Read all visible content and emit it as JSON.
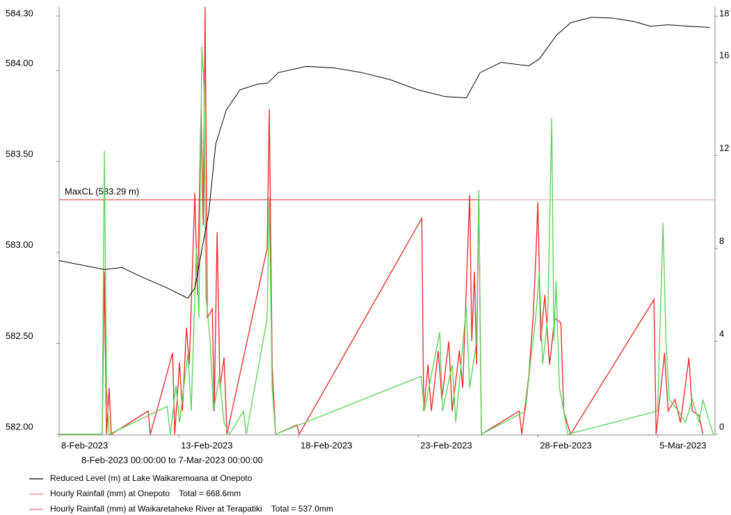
{
  "chart_data": {
    "type": "line",
    "subtitle": "8-Feb-2023 00:00:00 to  7-Mar-2023 00:00:00",
    "xlim": [
      0,
      27.4
    ],
    "xticks": [
      {
        "value": 0,
        "label": "8-Feb-2023"
      },
      {
        "value": 5,
        "label": "13-Feb-2023"
      },
      {
        "value": 10,
        "label": "18-Feb-2023"
      },
      {
        "value": 15,
        "label": "23-Feb-2023"
      },
      {
        "value": 20,
        "label": "28-Feb-2023"
      },
      {
        "value": 25,
        "label": "5-Mar-2023"
      }
    ],
    "ylim": [
      582,
      584.35
    ],
    "yticks": [
      {
        "value": 582,
        "label": "582.00"
      },
      {
        "value": 582.5,
        "label": "582.50"
      },
      {
        "value": 583,
        "label": "583.00"
      },
      {
        "value": 583.5,
        "label": "583.50"
      },
      {
        "value": 584,
        "label": "584.00"
      },
      {
        "value": 584.3,
        "label": "584.30"
      }
    ],
    "y2lim": [
      0,
      18.4
    ],
    "y2ticks": [
      0,
      4,
      8,
      12,
      16,
      18
    ],
    "grid": false,
    "reference_line": {
      "label": "MaxCL (583.29 m)",
      "value": 583.29,
      "color": "#e02020"
    },
    "series": [
      {
        "name": "Reduced Level (m) at Lake Waikaremoana at Onepoto",
        "color": "#000000",
        "legend_color": "#000000",
        "x": [
          0,
          1.89,
          2.62,
          3.34,
          4.51,
          5.38,
          5.67,
          6.25,
          6.54,
          6.98,
          7.56,
          8.29,
          8.72,
          9.16,
          10.32,
          11.48,
          12.65,
          13.81,
          14.97,
          16.13,
          17.01,
          17.59,
          18.46,
          19.62,
          20.06,
          20.78,
          21.37,
          22.24,
          23.11,
          23.98,
          24.71,
          25.44,
          26.31,
          27.18
        ],
        "values": [
          582.955,
          582.906,
          582.917,
          582.872,
          582.805,
          582.748,
          582.805,
          583.218,
          583.594,
          583.782,
          583.895,
          583.925,
          583.932,
          583.989,
          584.023,
          584.015,
          583.989,
          583.951,
          583.895,
          583.857,
          583.85,
          583.989,
          584.045,
          584.026,
          584.064,
          584.195,
          584.263,
          584.293,
          584.289,
          584.271,
          584.244,
          584.252,
          584.244,
          584.237
        ]
      },
      {
        "name": "Hourly Rainfall (mm) at Onepoto    Total = 668.6mm",
        "color": "#e83030",
        "legend_color": "#f08080",
        "axis": "y2",
        "x": [
          0,
          1.8,
          1.89,
          1.98,
          2.09,
          2.18,
          3.72,
          3.81,
          4.74,
          4.83,
          5.03,
          5.15,
          5.32,
          5.44,
          5.67,
          5.78,
          5.93,
          6.02,
          6.1,
          6.19,
          6.4,
          6.48,
          6.6,
          6.72,
          6.89,
          7.01,
          8.69,
          8.78,
          8.9,
          9.04,
          9.94,
          10.03,
          15.15,
          15.23,
          15.41,
          15.55,
          15.84,
          15.99,
          16.28,
          16.42,
          16.72,
          16.86,
          17.15,
          17.24,
          17.35,
          17.44,
          17.53,
          17.64,
          19.22,
          19.33,
          19.62,
          19.8,
          19.91,
          20.0,
          20.12,
          20.29,
          20.49,
          20.7,
          20.96,
          21.08,
          21.22,
          21.37,
          24.85,
          24.94,
          25.29,
          25.44,
          25.73,
          25.96,
          26.31,
          26.45,
          26.74,
          26.89
        ],
        "values": [
          0,
          0,
          7.0,
          0,
          2.0,
          0,
          1.0,
          0,
          3.5,
          0,
          3.1,
          1.0,
          4.6,
          3.0,
          10.4,
          6.0,
          14.0,
          9.0,
          18.4,
          5.0,
          5.4,
          1.0,
          8.7,
          2.0,
          3.3,
          0,
          8.0,
          14.0,
          3.0,
          0,
          0.4,
          0,
          9.3,
          1.0,
          3.0,
          1.0,
          3.6,
          1.5,
          4.0,
          1.0,
          3.6,
          2.0,
          10.3,
          4.0,
          7.0,
          3.0,
          10.5,
          0,
          1.0,
          0,
          2.5,
          5.0,
          7.5,
          10.0,
          4.0,
          6.0,
          3.0,
          5.0,
          4.8,
          1.0,
          0.5,
          0,
          5.8,
          0,
          3.5,
          1.0,
          1.5,
          0.5,
          3.3,
          1.0,
          0.8,
          0
        ]
      },
      {
        "name": "Hourly Rainfall (mm) at Waikaretaheke River at Terapatiki    Total = 537.0mm",
        "color": "#5cd65c",
        "legend_color": "#e060a0",
        "axis": "y2",
        "x": [
          0,
          1.8,
          1.89,
          1.98,
          2.09,
          4.51,
          4.65,
          4.88,
          5.03,
          5.38,
          5.52,
          5.73,
          5.84,
          5.96,
          6.05,
          6.13,
          6.31,
          6.45,
          6.69,
          6.89,
          7.12,
          7.7,
          7.82,
          8.69,
          8.78,
          8.9,
          9.04,
          15.12,
          15.26,
          15.9,
          16.02,
          16.42,
          16.57,
          17.01,
          17.15,
          17.44,
          17.53,
          17.64,
          19.48,
          19.68,
          19.91,
          20.06,
          20.2,
          20.41,
          20.58,
          20.67,
          20.76,
          20.9,
          21.08,
          21.25,
          25.0,
          25.23,
          25.35,
          25.49,
          25.87,
          26.16,
          26.45,
          26.74,
          26.89,
          27.18,
          27.33
        ],
        "values": [
          0,
          0,
          12.2,
          2.0,
          0,
          1.2,
          0,
          2.1,
          0.5,
          3.5,
          1.0,
          8.0,
          5.0,
          16.7,
          15.0,
          6.0,
          4.0,
          1.0,
          2.5,
          0.5,
          0,
          1.0,
          0,
          5.0,
          10.2,
          2.0,
          0,
          2.5,
          1.0,
          4.4,
          1.0,
          3.0,
          0.5,
          5.5,
          2.0,
          4.0,
          10.5,
          0,
          1.0,
          3.0,
          5.0,
          7.0,
          3.0,
          5.0,
          13.6,
          4.0,
          6.6,
          2.0,
          1.0,
          0,
          1.0,
          9.1,
          4.0,
          1.5,
          1.0,
          0.5,
          1.5,
          0.5,
          1.5,
          0.5,
          0
        ]
      }
    ]
  }
}
